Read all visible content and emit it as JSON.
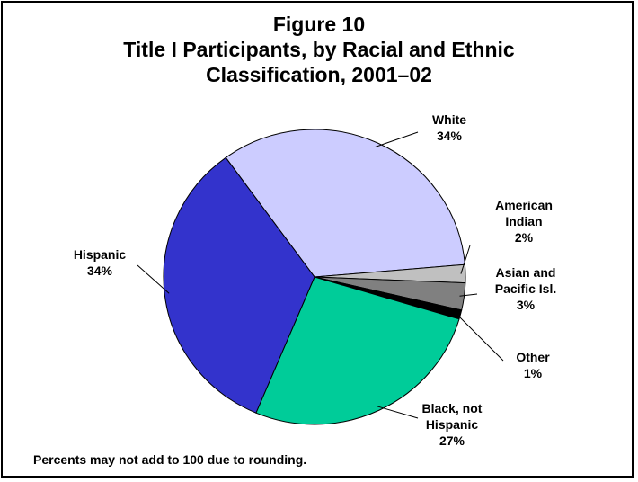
{
  "chart_data": {
    "type": "pie",
    "title_lines": [
      "Figure 10",
      "Title I Participants, by Racial and Ethnic",
      "Classification, 2001–02"
    ],
    "slices": [
      {
        "key": "white",
        "label_lines": [
          "White",
          "34%"
        ],
        "value": 34,
        "color": "#ccccff"
      },
      {
        "key": "american-indian",
        "label_lines": [
          "American",
          "Indian",
          "2%"
        ],
        "value": 2,
        "color": "#c0c0c0"
      },
      {
        "key": "asian-pacific",
        "label_lines": [
          "Asian and",
          "Pacific Isl.",
          "3%"
        ],
        "value": 3,
        "color": "#808080"
      },
      {
        "key": "other",
        "label_lines": [
          "Other",
          "1%"
        ],
        "value": 1,
        "color": "#000000"
      },
      {
        "key": "black",
        "label_lines": [
          "Black, not",
          "Hispanic",
          "27%"
        ],
        "value": 27,
        "color": "#00cc99"
      },
      {
        "key": "hispanic",
        "label_lines": [
          "Hispanic",
          "34%"
        ],
        "value": 34,
        "color": "#3333cc"
      }
    ],
    "footnote": "Percents may not add to 100 due to rounding."
  }
}
